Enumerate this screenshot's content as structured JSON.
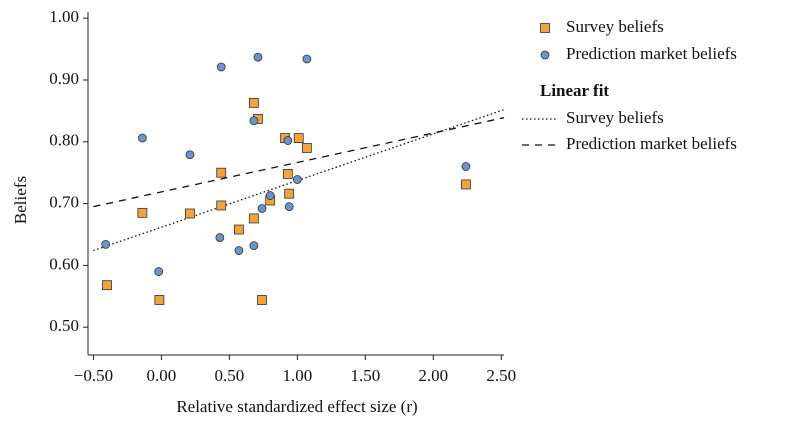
{
  "chart_data": {
    "type": "scatter",
    "x_label": "Relative standardized effect size (r)",
    "y_label": "Beliefs",
    "xlim": [
      -0.54,
      2.52
    ],
    "ylim": [
      0.455,
      1.01
    ],
    "xticks": [
      {
        "value": -0.5,
        "label": "−0.50"
      },
      {
        "value": 0,
        "label": "0.00"
      },
      {
        "value": 0.5,
        "label": "0.50"
      },
      {
        "value": 1,
        "label": "1.00"
      },
      {
        "value": 1.5,
        "label": "1.50"
      },
      {
        "value": 2,
        "label": "2.00"
      },
      {
        "value": 2.5,
        "label": "2.50"
      }
    ],
    "yticks": [
      {
        "value": 0.5,
        "label": "0.50"
      },
      {
        "value": 0.6,
        "label": "0.60"
      },
      {
        "value": 0.7,
        "label": "0.70"
      },
      {
        "value": 0.8,
        "label": "0.80"
      },
      {
        "value": 0.9,
        "label": "0.90"
      },
      {
        "value": 1,
        "label": "1.00"
      }
    ],
    "series": [
      {
        "name": "Survey beliefs",
        "color": "#f2a43c",
        "marker": "square",
        "x": [
          -0.4,
          -0.14,
          -0.015,
          0.21,
          0.44,
          0.44,
          0.57,
          0.68,
          0.71,
          0.68,
          0.74,
          0.8,
          0.91,
          0.93,
          0.94,
          1.01,
          1.07,
          2.24
        ],
        "values": [
          0.568,
          0.685,
          0.544,
          0.684,
          0.75,
          0.697,
          0.658,
          0.863,
          0.837,
          0.676,
          0.544,
          0.705,
          0.806,
          0.748,
          0.716,
          0.806,
          0.79,
          0.731
        ]
      },
      {
        "name": "Prediction market beliefs",
        "color": "#6b96cc",
        "marker": "circle",
        "x": [
          -0.41,
          -0.14,
          -0.02,
          0.21,
          0.44,
          0.43,
          0.57,
          0.68,
          0.71,
          0.68,
          0.74,
          0.8,
          0.93,
          0.94,
          1.0,
          1.07,
          2.24
        ],
        "values": [
          0.634,
          0.806,
          0.59,
          0.779,
          0.921,
          0.645,
          0.624,
          0.834,
          0.937,
          0.632,
          0.692,
          0.713,
          0.802,
          0.695,
          0.739,
          0.934,
          0.76
        ]
      }
    ],
    "fit_title": "Linear fit",
    "fits": [
      {
        "name": "Survey beliefs",
        "dash": "dotted",
        "x": [
          -0.5,
          2.52
        ],
        "values": [
          0.624,
          0.852
        ]
      },
      {
        "name": "Prediction market beliefs",
        "dash": "dashed",
        "x": [
          -0.5,
          2.52
        ],
        "values": [
          0.695,
          0.839
        ]
      }
    ]
  }
}
